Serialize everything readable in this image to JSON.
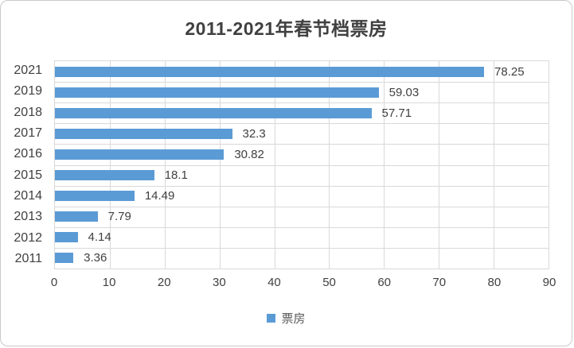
{
  "chart_data": {
    "type": "bar",
    "orientation": "horizontal",
    "title": "2011-2021年春节档票房",
    "categories": [
      "2021",
      "2019",
      "2018",
      "2017",
      "2016",
      "2015",
      "2014",
      "2013",
      "2012",
      "2011"
    ],
    "values": [
      78.25,
      59.03,
      57.71,
      32.3,
      30.82,
      18.1,
      14.49,
      7.79,
      4.14,
      3.36
    ],
    "value_labels": [
      "78.25",
      "59.03",
      "57.71",
      "32.3",
      "30.82",
      "18.1",
      "14.49",
      "7.79",
      "4.14",
      "3.36"
    ],
    "xlim": [
      0,
      90
    ],
    "x_ticks": [
      0,
      10,
      20,
      30,
      40,
      50,
      60,
      70,
      80,
      90
    ],
    "grid": true,
    "legend": {
      "label": "票房",
      "position": "bottom"
    },
    "colors": {
      "bar": "#5B9BD5",
      "grid": "#d9d9d9",
      "text": "#404040",
      "legend_text": "#595959",
      "frame_border": "#c9c9c9"
    }
  }
}
